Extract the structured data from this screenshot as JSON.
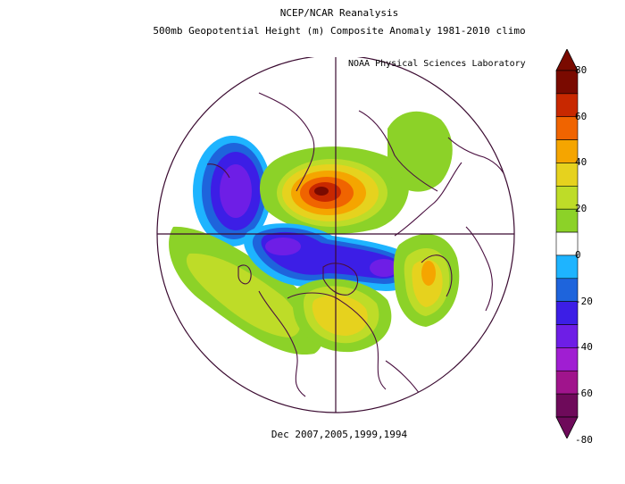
{
  "title": {
    "line1": "NCEP/NCAR Reanalysis",
    "line2": "500mb Geopotential Height (m) Composite Anomaly 1981-2010 climo"
  },
  "credit": "NOAA Physical Sciences Laboratory",
  "footer": "Dec 2007,2005,1999,1994",
  "map": {
    "projection": "north-polar-stereographic",
    "variable": "500mb geopotential height anomaly",
    "units": "m"
  },
  "colorbar": {
    "labels": [
      "80",
      "60",
      "40",
      "20",
      "0",
      "-20",
      "-40",
      "-60",
      "-80"
    ],
    "colors": [
      "#7a0a00",
      "#c82800",
      "#f06400",
      "#f5a500",
      "#e6d21e",
      "#bedc28",
      "#8cd228",
      "#ffffff",
      "#1eb4ff",
      "#1e64dc",
      "#3c1ee6",
      "#6e1ee6",
      "#a01ed2",
      "#a0148c",
      "#6e0a5a"
    ],
    "range": [
      -80,
      80
    ],
    "interval": 10
  },
  "colors": {
    "coastline": "#4a1040",
    "grid": "#3a0a30"
  }
}
